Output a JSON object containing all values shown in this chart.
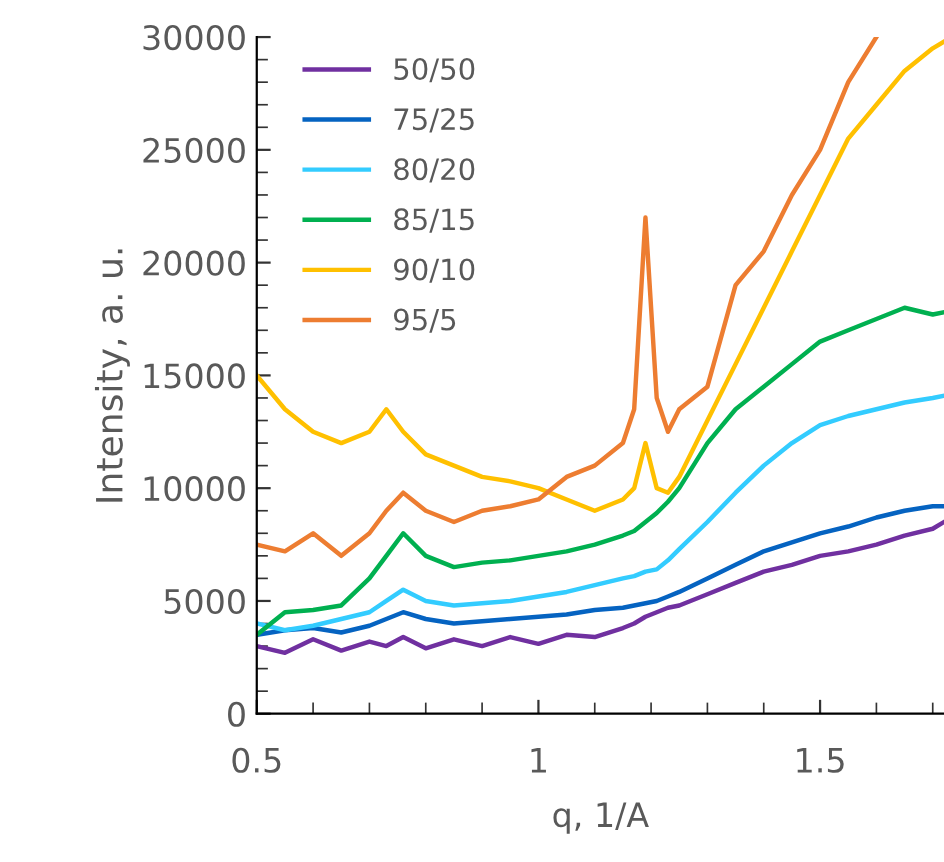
{
  "chart_data": {
    "type": "line",
    "xlabel": "q, 1/A",
    "ylabel": "Intensity, a. u.",
    "xlim": [
      0.5,
      1.72
    ],
    "xticks": [
      0.5,
      1,
      1.5
    ],
    "ylim": [
      0,
      30000
    ],
    "yticks": [
      0,
      5000,
      10000,
      15000,
      20000,
      25000,
      30000
    ],
    "grid": false,
    "legend": "top left",
    "marker": "none",
    "line_style": "solid",
    "x": [
      0.5,
      0.55,
      0.6,
      0.65,
      0.7,
      0.73,
      0.76,
      0.8,
      0.85,
      0.9,
      0.95,
      1.0,
      1.05,
      1.1,
      1.15,
      1.17,
      1.19,
      1.21,
      1.23,
      1.25,
      1.3,
      1.35,
      1.4,
      1.45,
      1.5,
      1.55,
      1.6,
      1.65,
      1.7,
      1.72
    ],
    "series": [
      {
        "name": "50/50",
        "color": "#7030a0",
        "values": [
          3000,
          2700,
          3300,
          2800,
          3200,
          3000,
          3400,
          2900,
          3300,
          3000,
          3400,
          3100,
          3500,
          3400,
          3800,
          4000,
          4300,
          4500,
          4700,
          4800,
          5300,
          5800,
          6300,
          6600,
          7000,
          7200,
          7500,
          7900,
          8200,
          8500
        ]
      },
      {
        "name": "75/25",
        "color": "#0563c1",
        "values": [
          3500,
          3700,
          3800,
          3600,
          3900,
          4200,
          4500,
          4200,
          4000,
          4100,
          4200,
          4300,
          4400,
          4600,
          4700,
          4800,
          4900,
          5000,
          5200,
          5400,
          6000,
          6600,
          7200,
          7600,
          8000,
          8300,
          8700,
          9000,
          9200,
          9200
        ]
      },
      {
        "name": "80/20",
        "color": "#33ccff",
        "values": [
          4000,
          3700,
          3900,
          4200,
          4500,
          5000,
          5500,
          5000,
          4800,
          4900,
          5000,
          5200,
          5400,
          5700,
          6000,
          6100,
          6300,
          6400,
          6800,
          7300,
          8500,
          9800,
          11000,
          12000,
          12800,
          13200,
          13500,
          13800,
          14000,
          14100
        ]
      },
      {
        "name": "85/15",
        "color": "#00b050",
        "values": [
          3500,
          4500,
          4600,
          4800,
          6000,
          7000,
          8000,
          7000,
          6500,
          6700,
          6800,
          7000,
          7200,
          7500,
          7900,
          8100,
          8500,
          8900,
          9400,
          10000,
          12000,
          13500,
          14500,
          15500,
          16500,
          17000,
          17500,
          18000,
          17700,
          17800
        ]
      },
      {
        "name": "90/10",
        "color": "#ffc000",
        "values": [
          15000,
          13500,
          12500,
          12000,
          12500,
          13500,
          12500,
          11500,
          11000,
          10500,
          10300,
          10000,
          9500,
          9000,
          9500,
          10000,
          12000,
          10000,
          9800,
          10500,
          13000,
          15500,
          18000,
          20500,
          23000,
          25500,
          27000,
          28500,
          29500,
          29800
        ]
      },
      {
        "name": "95/5",
        "color": "#ed7d31",
        "values": [
          7500,
          7200,
          8000,
          7000,
          8000,
          9000,
          9800,
          9000,
          8500,
          9000,
          9200,
          9500,
          10500,
          11000,
          12000,
          13500,
          22000,
          14000,
          12500,
          13500,
          14500,
          19000,
          20500,
          23000,
          25000,
          28000,
          30000,
          null,
          null,
          null
        ]
      }
    ]
  }
}
